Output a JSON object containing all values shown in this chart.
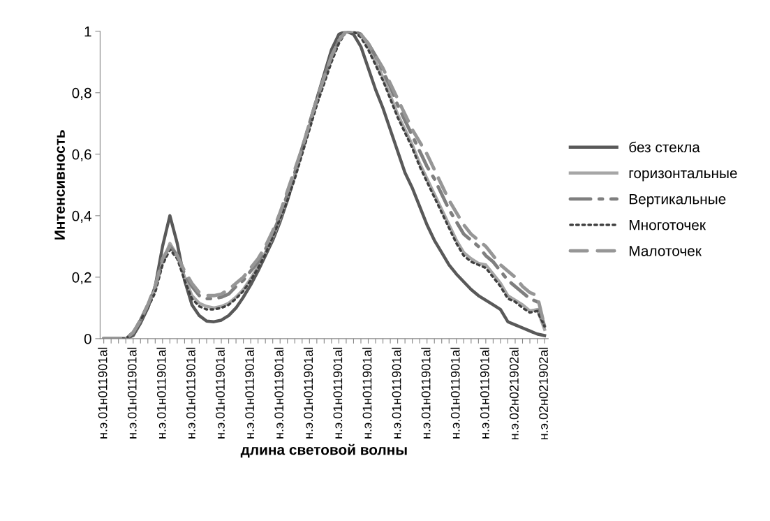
{
  "chart_data": {
    "type": "line",
    "xlabel": "длина световой волны",
    "ylabel": "Интенсивность",
    "categories": [
      "н.э.01н011901al",
      null,
      null,
      null,
      "н.э.01н011901al",
      null,
      null,
      null,
      "н.э.01н011901al",
      null,
      null,
      null,
      "н.э.01н011901al",
      null,
      null,
      null,
      "н.э.01н011901al",
      null,
      null,
      null,
      "н.э.01н011901al",
      null,
      null,
      null,
      "н.э.01н011901al",
      null,
      null,
      null,
      "н.э.01н011901al",
      null,
      null,
      null,
      "н.э.01н011901al",
      null,
      null,
      null,
      "н.э.01н011901al",
      null,
      null,
      null,
      "н.э.01н011901al",
      null,
      null,
      null,
      "н.э.01н011901al",
      null,
      null,
      null,
      "н.э.01н011901al",
      null,
      null,
      null,
      "н.э.01н011901al",
      null,
      null,
      null,
      "н.э.02н021902al",
      null,
      null,
      null,
      "н.э.02н021902al"
    ],
    "ylim": [
      0,
      1
    ],
    "yticks": [
      0,
      {
        "value": 0.2,
        "label": "0,2"
      },
      {
        "value": 0.4,
        "label": "0,4"
      },
      {
        "value": 0.6,
        "label": "0,6"
      },
      {
        "value": 0.8,
        "label": "0,8"
      },
      1
    ],
    "legend": "right",
    "grid": false,
    "series": [
      {
        "name": "без стекла",
        "color": "#595959",
        "line_style": "solid",
        "values": [
          0,
          0,
          0,
          0,
          0.01,
          0.05,
          0.1,
          0.17,
          0.3,
          0.4,
          0.31,
          0.19,
          0.11,
          0.075,
          0.057,
          0.055,
          0.06,
          0.075,
          0.1,
          0.135,
          0.175,
          0.22,
          0.27,
          0.32,
          0.38,
          0.45,
          0.53,
          0.61,
          0.69,
          0.78,
          0.86,
          0.94,
          0.99,
          1.0,
          0.99,
          0.95,
          0.88,
          0.81,
          0.75,
          0.68,
          0.61,
          0.54,
          0.49,
          0.43,
          0.37,
          0.32,
          0.28,
          0.24,
          0.21,
          0.185,
          0.16,
          0.14,
          0.125,
          0.11,
          0.095,
          0.055,
          0.045,
          0.035,
          0.025,
          0.015,
          0.01
        ]
      },
      {
        "name": "горизонтальные",
        "color": "#a6a6a6",
        "line_style": "solid",
        "values": [
          0,
          0,
          0,
          0,
          0.02,
          0.06,
          0.11,
          0.16,
          0.25,
          0.31,
          0.27,
          0.2,
          0.14,
          0.115,
          0.105,
          0.1,
          0.105,
          0.115,
          0.135,
          0.16,
          0.195,
          0.235,
          0.28,
          0.33,
          0.39,
          0.46,
          0.53,
          0.61,
          0.69,
          0.77,
          0.84,
          0.91,
          0.97,
          1.0,
          1.0,
          0.99,
          0.95,
          0.9,
          0.85,
          0.79,
          0.73,
          0.68,
          0.63,
          0.57,
          0.52,
          0.47,
          0.42,
          0.37,
          0.32,
          0.28,
          0.26,
          0.245,
          0.24,
          0.21,
          0.18,
          0.14,
          0.125,
          0.11,
          0.09,
          0.095,
          0.03
        ]
      },
      {
        "name": "Вертикальные",
        "color": "#7f7f7f",
        "line_style": "dashdot",
        "values": [
          0,
          0,
          0,
          0,
          0.02,
          0.06,
          0.11,
          0.17,
          0.25,
          0.3,
          0.27,
          0.21,
          0.17,
          0.14,
          0.13,
          0.13,
          0.135,
          0.145,
          0.17,
          0.19,
          0.22,
          0.25,
          0.29,
          0.34,
          0.4,
          0.47,
          0.54,
          0.62,
          0.7,
          0.78,
          0.85,
          0.92,
          0.97,
          1.0,
          1.0,
          0.99,
          0.96,
          0.92,
          0.87,
          0.82,
          0.76,
          0.71,
          0.66,
          0.61,
          0.56,
          0.52,
          0.47,
          0.42,
          0.38,
          0.34,
          0.32,
          0.3,
          0.27,
          0.25,
          0.22,
          0.19,
          0.17,
          0.15,
          0.13,
          0.12,
          0.04
        ]
      },
      {
        "name": "Многоточек",
        "color": "#404040",
        "line_style": "dotted",
        "values": [
          0,
          0,
          0,
          0,
          0.02,
          0.06,
          0.1,
          0.15,
          0.24,
          0.29,
          0.26,
          0.19,
          0.13,
          0.105,
          0.095,
          0.095,
          0.1,
          0.11,
          0.13,
          0.155,
          0.19,
          0.23,
          0.275,
          0.33,
          0.39,
          0.45,
          0.52,
          0.6,
          0.68,
          0.76,
          0.83,
          0.9,
          0.96,
          1.0,
          1.0,
          0.98,
          0.94,
          0.89,
          0.84,
          0.78,
          0.72,
          0.67,
          0.62,
          0.56,
          0.51,
          0.46,
          0.41,
          0.36,
          0.31,
          0.27,
          0.25,
          0.24,
          0.23,
          0.2,
          0.17,
          0.13,
          0.12,
          0.1,
          0.085,
          0.09,
          0.04
        ]
      },
      {
        "name": "Малоточек",
        "color": "#969696",
        "line_style": "dashed",
        "values": [
          0,
          0,
          0,
          0,
          0.02,
          0.06,
          0.11,
          0.17,
          0.26,
          0.3,
          0.27,
          0.22,
          0.18,
          0.15,
          0.14,
          0.14,
          0.145,
          0.16,
          0.18,
          0.2,
          0.23,
          0.26,
          0.3,
          0.35,
          0.41,
          0.48,
          0.55,
          0.62,
          0.7,
          0.78,
          0.85,
          0.92,
          0.97,
          1.0,
          1.0,
          0.99,
          0.96,
          0.92,
          0.88,
          0.83,
          0.78,
          0.73,
          0.68,
          0.64,
          0.6,
          0.55,
          0.5,
          0.45,
          0.41,
          0.37,
          0.34,
          0.32,
          0.3,
          0.27,
          0.24,
          0.22,
          0.2,
          0.17,
          0.15,
          0.14,
          0.04
        ]
      }
    ]
  }
}
